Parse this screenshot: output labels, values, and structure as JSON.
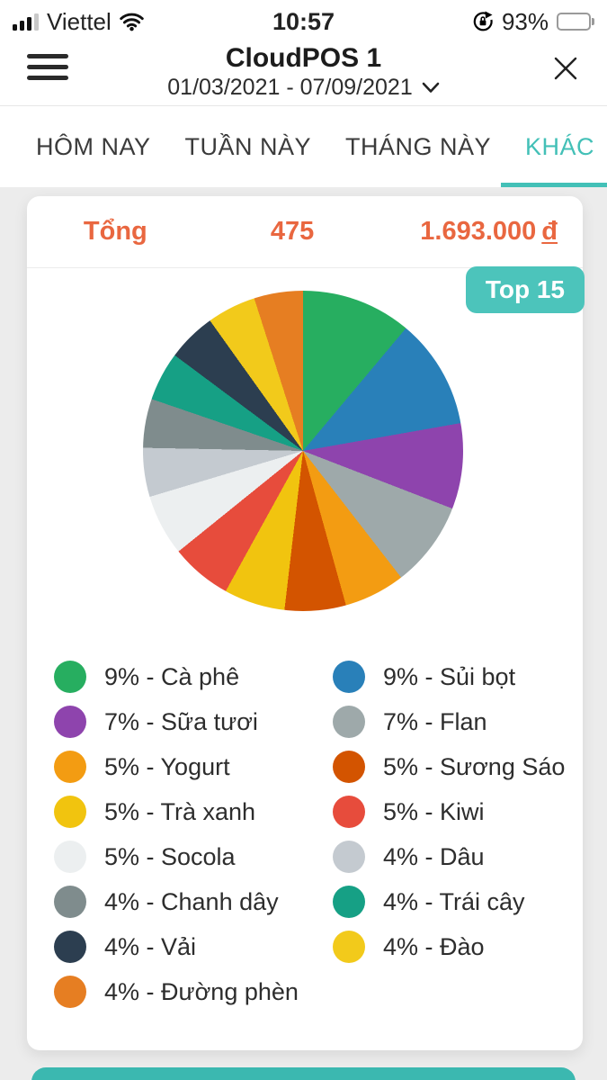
{
  "status_bar": {
    "carrier": "Viettel",
    "time": "10:57",
    "battery_percent": "93%"
  },
  "header": {
    "title": "CloudPOS 1",
    "date_range": "01/03/2021 - 07/09/2021"
  },
  "tabs": [
    {
      "label": "HÔM NAY",
      "active": false
    },
    {
      "label": "TUẦN NÀY",
      "active": false
    },
    {
      "label": "THÁNG NÀY",
      "active": false
    },
    {
      "label": "KHÁC",
      "active": true
    }
  ],
  "summary": {
    "label": "Tổng",
    "count": "475",
    "amount": "1.693.000",
    "currency": "đ"
  },
  "badge": {
    "label": "Top 15"
  },
  "colors": {
    "accent_teal": "#43c0b7",
    "badge_teal": "#4cc4bb",
    "accent_orange": "#e96740"
  },
  "chart_data": {
    "type": "pie",
    "title": "Top 15",
    "legend_position": "bottom",
    "legend_format": "{percent}% - {name}",
    "series": [
      {
        "name": "Cà phê",
        "percent": 9,
        "color": "#27ae60"
      },
      {
        "name": "Sủi bọt",
        "percent": 9,
        "color": "#2980b9"
      },
      {
        "name": "Sữa tươi",
        "percent": 7,
        "color": "#8e44ad"
      },
      {
        "name": "Flan",
        "percent": 7,
        "color": "#9ea9aa"
      },
      {
        "name": "Yogurt",
        "percent": 5,
        "color": "#f39c12"
      },
      {
        "name": "Sương Sáo",
        "percent": 5,
        "color": "#d35400"
      },
      {
        "name": "Trà xanh",
        "percent": 5,
        "color": "#f1c40f"
      },
      {
        "name": "Kiwi",
        "percent": 5,
        "color": "#e74c3c"
      },
      {
        "name": "Socola",
        "percent": 5,
        "color": "#eceff0"
      },
      {
        "name": "Dâu",
        "percent": 4,
        "color": "#c4cad0"
      },
      {
        "name": "Chanh dây",
        "percent": 4,
        "color": "#7f8c8d"
      },
      {
        "name": "Trái cây",
        "percent": 4,
        "color": "#16a085"
      },
      {
        "name": "Vải",
        "percent": 4,
        "color": "#2c3e50"
      },
      {
        "name": "Đào",
        "percent": 4,
        "color": "#f2ca1b"
      },
      {
        "name": "Đường phèn",
        "percent": 4,
        "color": "#e67e22"
      }
    ]
  }
}
